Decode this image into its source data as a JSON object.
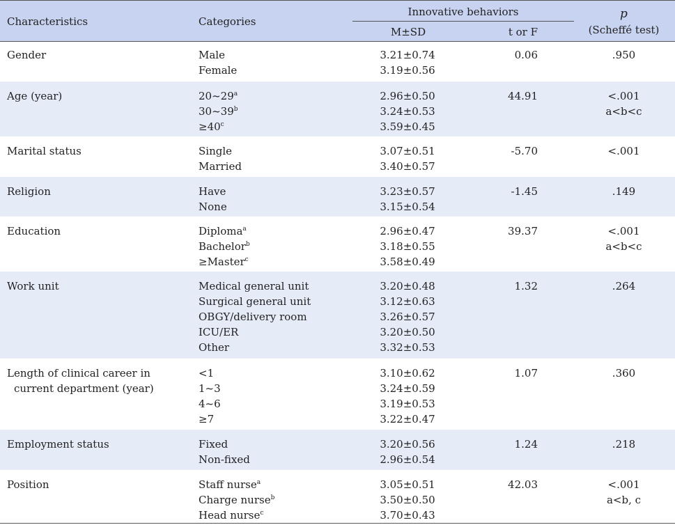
{
  "header": {
    "characteristics": "Characteristics",
    "categories": "Categories",
    "group": "Innovative behaviors",
    "msd": "M±SD",
    "tf": "t or F",
    "p": "p",
    "scheffe": "(Scheffé test)"
  },
  "rows": [
    {
      "char": [
        "Gender"
      ],
      "cats": [
        [
          "Male",
          ""
        ],
        [
          "Female",
          ""
        ]
      ],
      "msd": [
        "3.21±0.74",
        "3.19±0.56"
      ],
      "tf": "0.06",
      "p": [
        ".950"
      ]
    },
    {
      "char": [
        "Age (year)"
      ],
      "cats": [
        [
          "20~29",
          "a"
        ],
        [
          "30~39",
          "b"
        ],
        [
          "≥40",
          "c"
        ]
      ],
      "msd": [
        "2.96±0.50",
        "3.24±0.53",
        "3.59±0.45"
      ],
      "tf": "44.91",
      "p": [
        "<.001",
        "a<b<c"
      ]
    },
    {
      "char": [
        "Marital status"
      ],
      "cats": [
        [
          "Single",
          ""
        ],
        [
          "Married",
          ""
        ]
      ],
      "msd": [
        "3.07±0.51",
        "3.40±0.57"
      ],
      "tf": "-5.70",
      "p": [
        "<.001"
      ]
    },
    {
      "char": [
        "Religion"
      ],
      "cats": [
        [
          "Have",
          ""
        ],
        [
          "None",
          ""
        ]
      ],
      "msd": [
        "3.23±0.57",
        "3.15±0.54"
      ],
      "tf": "-1.45",
      "p": [
        ".149"
      ]
    },
    {
      "char": [
        "Education"
      ],
      "cats": [
        [
          "Diploma",
          "a"
        ],
        [
          "Bachelor",
          "b"
        ],
        [
          "≥Master",
          "c"
        ]
      ],
      "msd": [
        "2.96±0.47",
        "3.18±0.55",
        "3.58±0.49"
      ],
      "tf": "39.37",
      "p": [
        "<.001",
        "a<b<c"
      ]
    },
    {
      "char": [
        "Work unit"
      ],
      "cats": [
        [
          "Medical general unit",
          ""
        ],
        [
          "Surgical general unit",
          ""
        ],
        [
          "OBGY/delivery room",
          ""
        ],
        [
          "ICU/ER",
          ""
        ],
        [
          "Other",
          ""
        ]
      ],
      "msd": [
        "3.20±0.48",
        "3.12±0.63",
        "3.26±0.57",
        "3.20±0.50",
        "3.32±0.53"
      ],
      "tf": "1.32",
      "p": [
        ".264"
      ]
    },
    {
      "char": [
        "Length of clinical career in",
        "current department (year)"
      ],
      "cats": [
        [
          "<1",
          ""
        ],
        [
          "1~3",
          ""
        ],
        [
          "4~6",
          ""
        ],
        [
          "≥7",
          ""
        ]
      ],
      "msd": [
        "3.10±0.62",
        "3.24±0.59",
        "3.19±0.53",
        "3.22±0.47"
      ],
      "tf": "1.07",
      "p": [
        ".360"
      ]
    },
    {
      "char": [
        "Employment status"
      ],
      "cats": [
        [
          "Fixed",
          ""
        ],
        [
          "Non-fixed",
          ""
        ]
      ],
      "msd": [
        "3.20±0.56",
        "2.96±0.54"
      ],
      "tf": "1.24",
      "p": [
        ".218"
      ]
    },
    {
      "char": [
        "Position"
      ],
      "cats": [
        [
          "Staff nurse",
          "a"
        ],
        [
          "Charge nurse",
          "b"
        ],
        [
          "Head nurse",
          "c"
        ]
      ],
      "msd": [
        "3.05±0.51",
        "3.50±0.50",
        "3.70±0.43"
      ],
      "tf": "42.03",
      "p": [
        "<.001",
        "a<b, c"
      ]
    }
  ]
}
